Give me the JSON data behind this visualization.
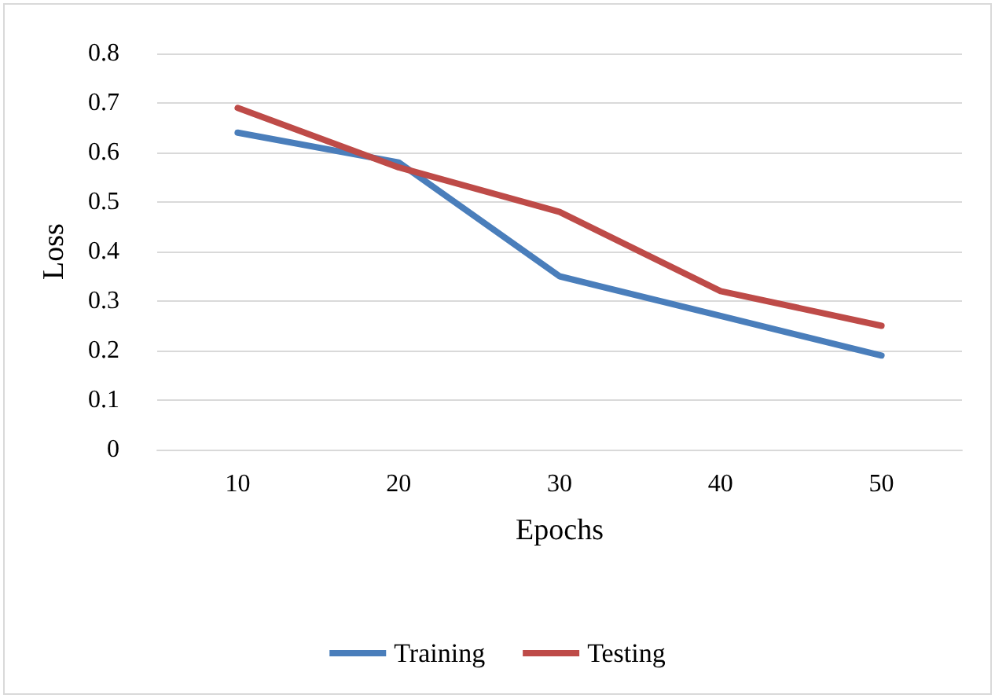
{
  "chart_data": {
    "type": "line",
    "xlabel": "Epochs",
    "ylabel": "Loss",
    "categories": [
      "10",
      "20",
      "30",
      "40",
      "50"
    ],
    "series": [
      {
        "name": "Training",
        "color": "#4a7ebb",
        "values": [
          0.64,
          0.58,
          0.35,
          0.27,
          0.19
        ]
      },
      {
        "name": "Testing",
        "color": "#be4b48",
        "values": [
          0.69,
          0.57,
          0.48,
          0.32,
          0.25
        ]
      }
    ],
    "ylim": [
      0,
      0.8
    ],
    "yticks": [
      0,
      0.1,
      0.2,
      0.3,
      0.4,
      0.5,
      0.6,
      0.7,
      0.8
    ],
    "grid": "y",
    "legend": "bottom",
    "marker": "none",
    "line_style": "solid"
  }
}
